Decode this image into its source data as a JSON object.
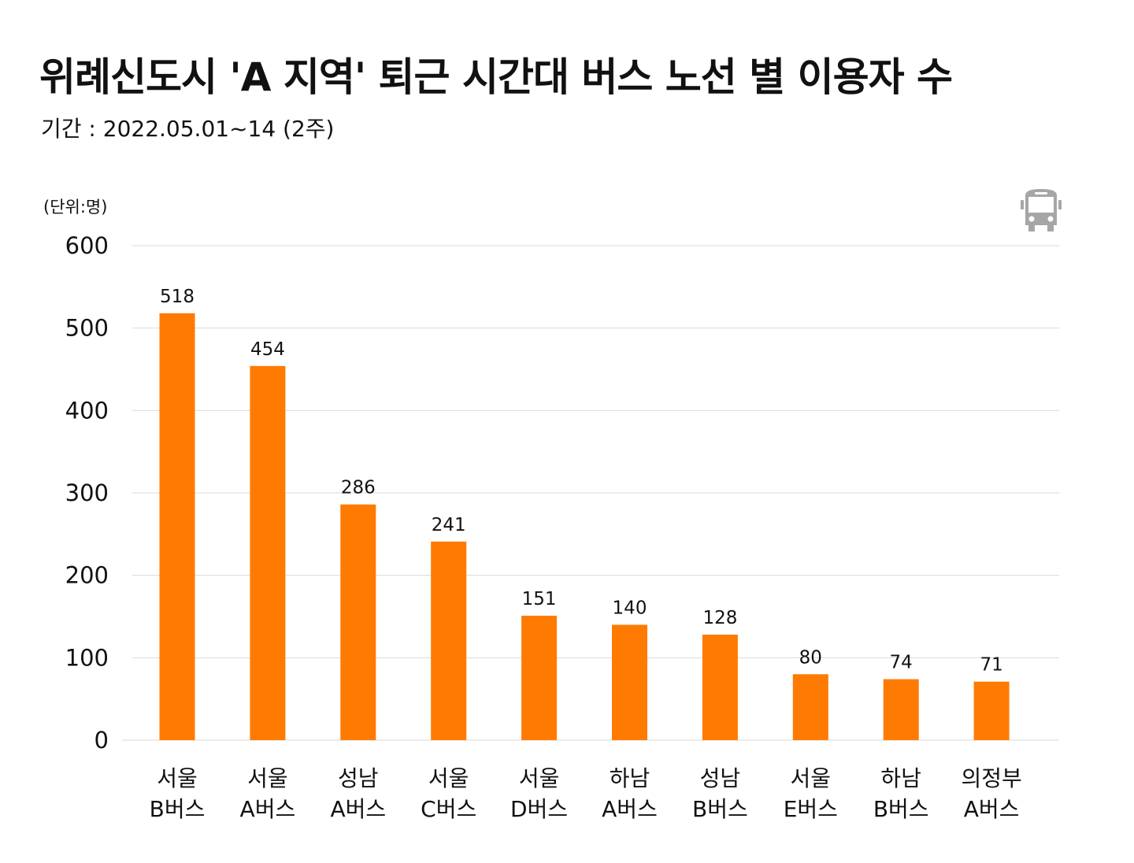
{
  "chart_data": {
    "type": "bar",
    "title": "위례신도시 'A 지역' 퇴근 시간대 버스 노선 별 이용자 수",
    "subtitle": "기간 : 2022.05.01~14 (2주)",
    "unit_label": "(단위:명)",
    "categories": [
      [
        "서울",
        "B버스"
      ],
      [
        "서울",
        "A버스"
      ],
      [
        "성남",
        "A버스"
      ],
      [
        "서울",
        "C버스"
      ],
      [
        "서울",
        "D버스"
      ],
      [
        "하남",
        "A버스"
      ],
      [
        "성남",
        "B버스"
      ],
      [
        "서울",
        "E버스"
      ],
      [
        "하남",
        "B버스"
      ],
      [
        "의정부",
        "A버스"
      ]
    ],
    "values": [
      518,
      454,
      286,
      241,
      151,
      140,
      128,
      80,
      74,
      71
    ],
    "ylim": [
      0,
      600
    ],
    "yticks": [
      0,
      100,
      200,
      300,
      400,
      500,
      600
    ],
    "grid": true,
    "bar_color": "#FF7A00",
    "grid_color": "#D9D9D9",
    "icon": "bus-icon",
    "icon_color": "#A6A6A6"
  }
}
